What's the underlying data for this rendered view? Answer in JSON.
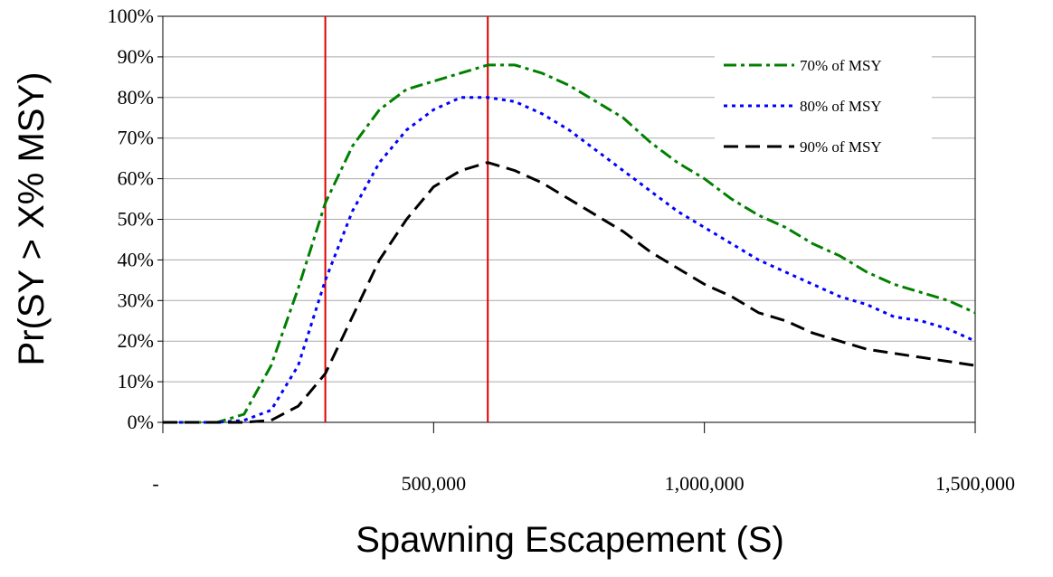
{
  "chart_data": {
    "type": "line",
    "x_label": "Spawning Escapement (S)",
    "y_label": "Pr(SY > X% MSY)",
    "x": [
      0,
      50000,
      100000,
      150000,
      200000,
      250000,
      300000,
      350000,
      400000,
      450000,
      500000,
      550000,
      600000,
      650000,
      700000,
      750000,
      800000,
      850000,
      900000,
      950000,
      1000000,
      1050000,
      1100000,
      1150000,
      1200000,
      1250000,
      1300000,
      1350000,
      1400000,
      1450000,
      1500000
    ],
    "series": [
      {
        "name": "70% of MSY",
        "color": "#008000",
        "dash": "dash-dot",
        "values": [
          0,
          0,
          0,
          2,
          14,
          33,
          54,
          68,
          77,
          82,
          84,
          86,
          88,
          88,
          86,
          83,
          79,
          75,
          69,
          64,
          60,
          55,
          51,
          48,
          44,
          41,
          37,
          34,
          32,
          30,
          27
        ]
      },
      {
        "name": "80% of MSY",
        "color": "#0000ff",
        "dash": "dot",
        "values": [
          0,
          0,
          0,
          0.5,
          3,
          14,
          35,
          52,
          64,
          72,
          77,
          80,
          80,
          79,
          76,
          72,
          67,
          62,
          57,
          52,
          48,
          44,
          40,
          37,
          34,
          31,
          29,
          26,
          25,
          23,
          20
        ]
      },
      {
        "name": "90% of MSY",
        "color": "#000000",
        "dash": "dash",
        "values": [
          0,
          0,
          0,
          0,
          0.5,
          4,
          12,
          26,
          40,
          50,
          58,
          62,
          64,
          62,
          59,
          55,
          51,
          47,
          42,
          38,
          34,
          31,
          27,
          25,
          22,
          20,
          18,
          17,
          16,
          15,
          14
        ]
      }
    ],
    "reference_lines": {
      "x": [
        300000,
        600000
      ],
      "color": "#e00000"
    },
    "xlim": [
      0,
      1500000
    ],
    "xticks": [
      {
        "value": 0,
        "label": "-"
      },
      {
        "value": 500000,
        "label": "500,000"
      },
      {
        "value": 1000000,
        "label": "1,000,000"
      },
      {
        "value": 1500000,
        "label": "1,500,000"
      }
    ],
    "ylim": [
      0,
      100
    ],
    "yticks": [
      {
        "value": 0,
        "label": "0%"
      },
      {
        "value": 10,
        "label": "10%"
      },
      {
        "value": 20,
        "label": "20%"
      },
      {
        "value": 30,
        "label": "30%"
      },
      {
        "value": 40,
        "label": "40%"
      },
      {
        "value": 50,
        "label": "50%"
      },
      {
        "value": 60,
        "label": "60%"
      },
      {
        "value": 70,
        "label": "70%"
      },
      {
        "value": 80,
        "label": "80%"
      },
      {
        "value": 90,
        "label": "90%"
      },
      {
        "value": 100,
        "label": "100%"
      }
    ],
    "grid": true,
    "legend": "upper-right"
  }
}
